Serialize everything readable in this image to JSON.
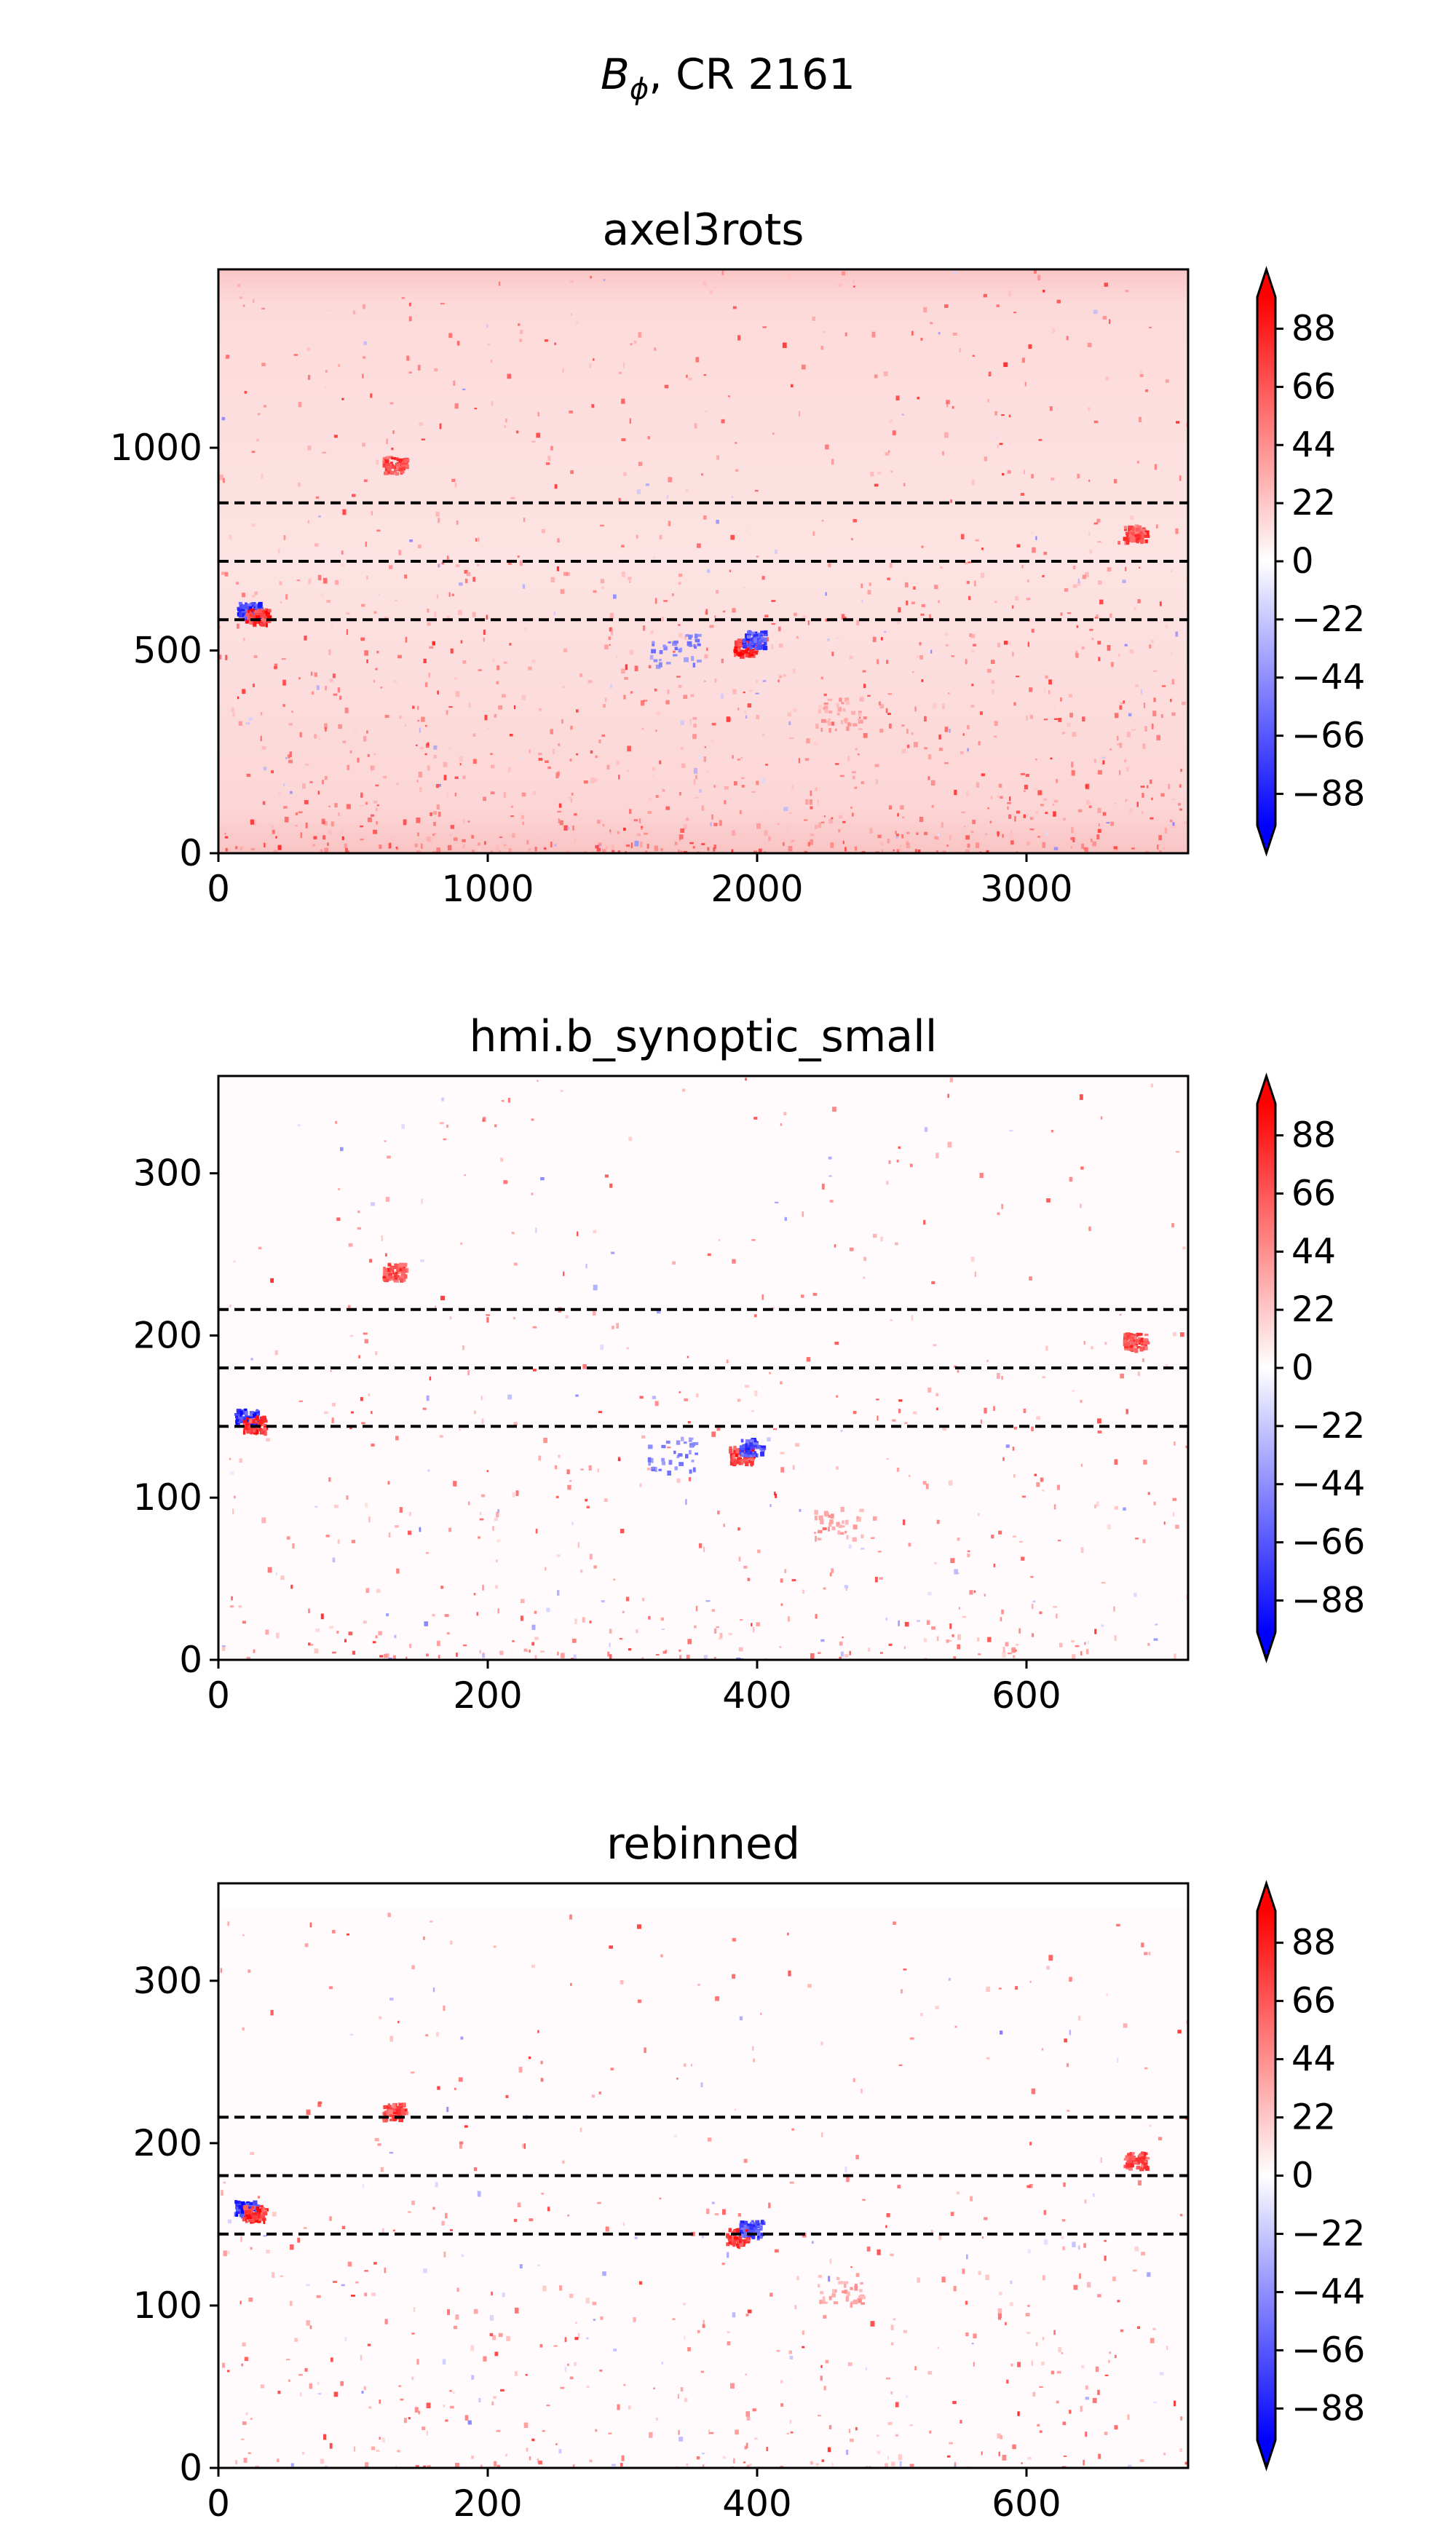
{
  "figure": {
    "suptitle_symbol": "B",
    "suptitle_subscript": "ϕ",
    "suptitle_rest": ", CR 2161"
  },
  "chart_data": [
    {
      "type": "heatmap",
      "title": "axel3rots",
      "xlabel": "",
      "ylabel": "",
      "xlim": [
        0,
        3600
      ],
      "ylim": [
        0,
        1440
      ],
      "xticks": [
        0,
        1000,
        2000,
        3000
      ],
      "xtick_labels": [
        "0",
        "1000",
        "2000",
        "3000"
      ],
      "yticks": [
        0,
        500,
        1000
      ],
      "ytick_labels": [
        "0",
        "500",
        "1000"
      ],
      "hlines": [
        576,
        720,
        864
      ],
      "colormap": "bwr",
      "colorbar": {
        "range": [
          -100,
          100
        ],
        "extend": "both",
        "ticks": [
          -88,
          -66,
          -44,
          -22,
          0,
          22,
          44,
          66,
          88
        ],
        "tick_labels": [
          "−88",
          "−66",
          "−44",
          "−22",
          "0",
          "22",
          "44",
          "66",
          "88"
        ],
        "min_color": "#0000ff",
        "mid_color": "#ffffff",
        "max_color": "#ff0000"
      },
      "grid": false,
      "background_tint": "light red (positive bias), stronger near top and bottom edges",
      "features": [
        {
          "x": 110,
          "y": 600,
          "value": -100
        },
        {
          "x": 140,
          "y": 585,
          "value": 100
        },
        {
          "x": 650,
          "y": 960,
          "value": 90
        },
        {
          "x": 1950,
          "y": 510,
          "value": 100
        },
        {
          "x": 1985,
          "y": 530,
          "value": -90
        },
        {
          "x": 1690,
          "y": 505,
          "value": -60
        },
        {
          "x": 3400,
          "y": 790,
          "value": 90
        },
        {
          "x": 2300,
          "y": 350,
          "value": 45
        }
      ]
    },
    {
      "type": "heatmap",
      "title": "hmi.b_synoptic_small",
      "xlabel": "",
      "ylabel": "",
      "xlim": [
        0,
        720
      ],
      "ylim": [
        0,
        360
      ],
      "xticks": [
        0,
        200,
        400,
        600
      ],
      "xtick_labels": [
        "0",
        "200",
        "400",
        "600"
      ],
      "yticks": [
        0,
        100,
        200,
        300
      ],
      "ytick_labels": [
        "0",
        "100",
        "200",
        "300"
      ],
      "hlines": [
        144,
        180,
        216
      ],
      "colormap": "bwr",
      "colorbar": {
        "range": [
          -100,
          100
        ],
        "extend": "both",
        "ticks": [
          -88,
          -66,
          -44,
          -22,
          0,
          22,
          44,
          66,
          88
        ],
        "tick_labels": [
          "−88",
          "−66",
          "−44",
          "−22",
          "0",
          "22",
          "44",
          "66",
          "88"
        ],
        "min_color": "#0000ff",
        "mid_color": "#ffffff",
        "max_color": "#ff0000"
      },
      "grid": false,
      "background_tint": "nearly white",
      "features": [
        {
          "x": 20,
          "y": 150,
          "value": -100
        },
        {
          "x": 26,
          "y": 146,
          "value": 100
        },
        {
          "x": 130,
          "y": 240,
          "value": 90
        },
        {
          "x": 387,
          "y": 127,
          "value": 100
        },
        {
          "x": 395,
          "y": 132,
          "value": -90
        },
        {
          "x": 336,
          "y": 127,
          "value": -60
        },
        {
          "x": 680,
          "y": 197,
          "value": 90
        },
        {
          "x": 460,
          "y": 85,
          "value": 45
        }
      ]
    },
    {
      "type": "heatmap",
      "title": "rebinned",
      "xlabel": "",
      "ylabel": "",
      "xlim": [
        0,
        720
      ],
      "ylim": [
        0,
        360
      ],
      "xticks": [
        0,
        200,
        400,
        600
      ],
      "xtick_labels": [
        "0",
        "200",
        "400",
        "600"
      ],
      "yticks": [
        0,
        100,
        200,
        300
      ],
      "ytick_labels": [
        "0",
        "100",
        "200",
        "300"
      ],
      "hlines": [
        144,
        180,
        216
      ],
      "colormap": "bwr",
      "colorbar": {
        "range": [
          -100,
          100
        ],
        "extend": "both",
        "ticks": [
          -88,
          -66,
          -44,
          -22,
          0,
          22,
          44,
          66,
          88
        ],
        "tick_labels": [
          "−88",
          "−66",
          "−44",
          "−22",
          "0",
          "22",
          "44",
          "66",
          "88"
        ],
        "min_color": "#0000ff",
        "mid_color": "#ffffff",
        "max_color": "#ff0000"
      },
      "grid": false,
      "data_top": 345,
      "background_tint": "nearly white with faint pink speckle; blank above y=345",
      "features": [
        {
          "x": 20,
          "y": 160,
          "value": -100
        },
        {
          "x": 26,
          "y": 157,
          "value": 100
        },
        {
          "x": 130,
          "y": 220,
          "value": 90
        },
        {
          "x": 385,
          "y": 143,
          "value": 100
        },
        {
          "x": 395,
          "y": 148,
          "value": -90
        },
        {
          "x": 680,
          "y": 190,
          "value": 90
        },
        {
          "x": 460,
          "y": 110,
          "value": 45
        }
      ]
    }
  ]
}
